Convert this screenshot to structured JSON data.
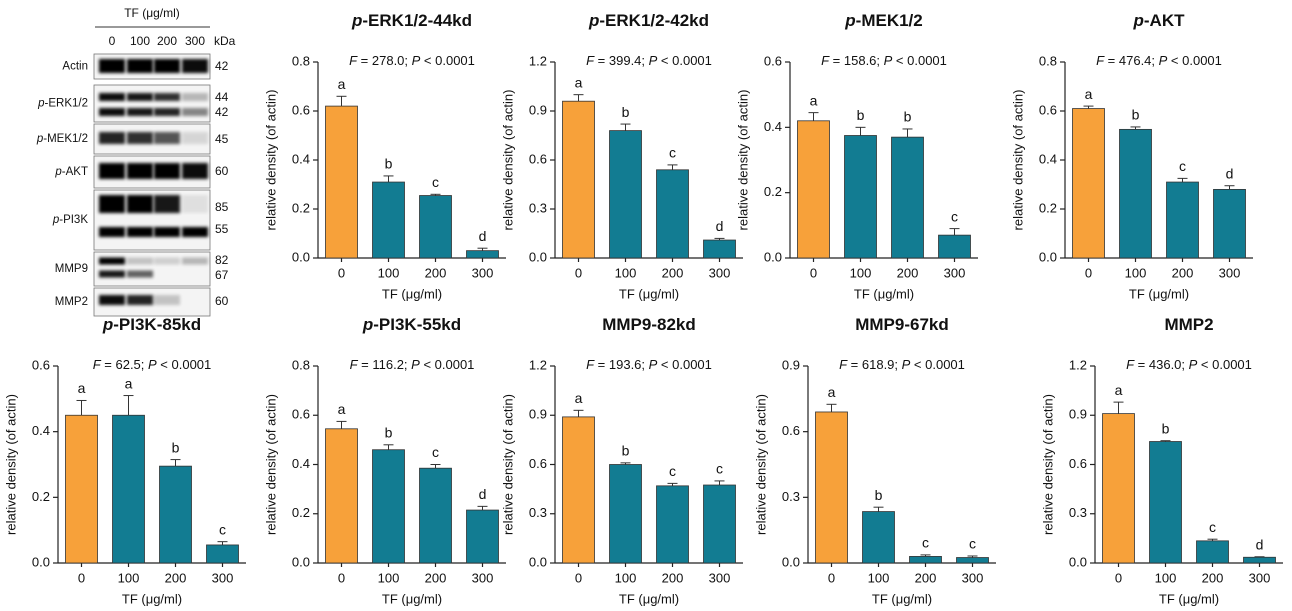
{
  "blot": {
    "header": "TF (μg/ml)",
    "doses": [
      "0",
      "100",
      "200",
      "300"
    ],
    "unit": "kDa",
    "rows": [
      {
        "label": "Actin",
        "kda": [
          "42"
        ]
      },
      {
        "prefix": "p",
        "label": "-ERK1/2",
        "kda": [
          "44",
          "42"
        ]
      },
      {
        "prefix": "p",
        "label": "-MEK1/2",
        "kda": [
          "45"
        ]
      },
      {
        "prefix": "p",
        "label": "-AKT",
        "kda": [
          "60"
        ]
      },
      {
        "prefix": "p",
        "label": "-PI3K",
        "kda": [
          "85",
          "55"
        ]
      },
      {
        "label": "MMP9",
        "kda": [
          "82",
          "67"
        ]
      },
      {
        "label": "MMP2",
        "kda": [
          "60"
        ]
      }
    ]
  },
  "chart_data": [
    {
      "type": "bar",
      "title_prefix": "p",
      "title": "-ERK1/2-44kd",
      "annotation": [
        "F",
        " = 278.0; ",
        "P",
        " < 0.0001"
      ],
      "categories": [
        "0",
        "100",
        "200",
        "300"
      ],
      "values": [
        0.62,
        0.31,
        0.255,
        0.03
      ],
      "errors": [
        0.04,
        0.025,
        0.005,
        0.01
      ],
      "letters": [
        "a",
        "b",
        "c",
        "d"
      ],
      "colors": [
        "#f7a13a",
        "#127c92",
        "#127c92",
        "#127c92"
      ],
      "ylim": [
        0,
        0.8
      ],
      "yticks": [
        {
          "value": 0,
          "label": "0.0"
        },
        0.2,
        0.4,
        0.6,
        0.8
      ],
      "xlabel": "TF (μg/ml)",
      "ylabel": "relative density (of actin)"
    },
    {
      "type": "bar",
      "title_prefix": "p",
      "title": "-ERK1/2-42kd",
      "annotation": [
        "F",
        " = 399.4; ",
        "P",
        " < 0.0001"
      ],
      "categories": [
        "0",
        "100",
        "200",
        "300"
      ],
      "values": [
        0.96,
        0.78,
        0.54,
        0.11
      ],
      "errors": [
        0.04,
        0.04,
        0.03,
        0.01
      ],
      "letters": [
        "a",
        "b",
        "c",
        "d"
      ],
      "colors": [
        "#f7a13a",
        "#127c92",
        "#127c92",
        "#127c92"
      ],
      "ylim": [
        0,
        1.2
      ],
      "yticks": [
        {
          "value": 0,
          "label": "0.0"
        },
        0.3,
        0.6,
        0.9,
        1.2
      ],
      "xlabel": "TF (μg/ml)",
      "ylabel": "relative density (of actin)"
    },
    {
      "type": "bar",
      "title_prefix": "p",
      "title": "-MEK1/2",
      "annotation": [
        "F",
        " = 158.6; ",
        "P",
        " < 0.0001"
      ],
      "categories": [
        "0",
        "100",
        "200",
        "300"
      ],
      "values": [
        0.42,
        0.375,
        0.37,
        0.07
      ],
      "errors": [
        0.025,
        0.025,
        0.025,
        0.02
      ],
      "letters": [
        "a",
        "b",
        "b",
        "c"
      ],
      "colors": [
        "#f7a13a",
        "#127c92",
        "#127c92",
        "#127c92"
      ],
      "ylim": [
        0,
        0.6
      ],
      "yticks": [
        {
          "value": 0,
          "label": "0.0"
        },
        0.2,
        0.4,
        0.6
      ],
      "xlabel": "TF (μg/ml)",
      "ylabel": "relative density (of actin)"
    },
    {
      "type": "bar",
      "title_prefix": "p",
      "title": "-AKT",
      "annotation": [
        "F",
        " = 476.4; ",
        "P",
        " < 0.0001"
      ],
      "categories": [
        "0",
        "100",
        "200",
        "300"
      ],
      "values": [
        0.61,
        0.525,
        0.31,
        0.28
      ],
      "errors": [
        0.01,
        0.01,
        0.015,
        0.015
      ],
      "letters": [
        "a",
        "b",
        "c",
        "d"
      ],
      "colors": [
        "#f7a13a",
        "#127c92",
        "#127c92",
        "#127c92"
      ],
      "ylim": [
        0,
        0.8
      ],
      "yticks": [
        {
          "value": 0,
          "label": "0.0"
        },
        0.2,
        0.4,
        0.6,
        0.8
      ],
      "xlabel": "TF (μg/ml)",
      "ylabel": "relative density (of actin)"
    },
    {
      "type": "bar",
      "title_prefix": "p",
      "title": "-PI3K-85kd",
      "annotation": [
        "F",
        " = 62.5; ",
        "P",
        " < 0.0001"
      ],
      "categories": [
        "0",
        "100",
        "200",
        "300"
      ],
      "values": [
        0.45,
        0.45,
        0.295,
        0.055
      ],
      "errors": [
        0.045,
        0.06,
        0.02,
        0.01
      ],
      "letters": [
        "a",
        "a",
        "b",
        "c"
      ],
      "colors": [
        "#f7a13a",
        "#127c92",
        "#127c92",
        "#127c92"
      ],
      "ylim": [
        0,
        0.6
      ],
      "yticks": [
        {
          "value": 0,
          "label": "0.0"
        },
        0.2,
        0.4,
        0.6
      ],
      "xlabel": "TF (μg/ml)",
      "ylabel": "relative density (of actin)"
    },
    {
      "type": "bar",
      "title_prefix": "p",
      "title": "-PI3K-55kd",
      "annotation": [
        "F",
        " = 116.2; ",
        "P",
        " < 0.0001"
      ],
      "categories": [
        "0",
        "100",
        "200",
        "300"
      ],
      "values": [
        0.545,
        0.46,
        0.385,
        0.215
      ],
      "errors": [
        0.03,
        0.02,
        0.015,
        0.015
      ],
      "letters": [
        "a",
        "b",
        "c",
        "d"
      ],
      "colors": [
        "#f7a13a",
        "#127c92",
        "#127c92",
        "#127c92"
      ],
      "ylim": [
        0,
        0.8
      ],
      "yticks": [
        {
          "value": 0,
          "label": "0.0"
        },
        0.2,
        0.4,
        0.6,
        0.8
      ],
      "xlabel": "TF (μg/ml)",
      "ylabel": "relative density (of actin)"
    },
    {
      "type": "bar",
      "title": "MMP9-82kd",
      "annotation": [
        "F",
        " = 193.6; ",
        "P",
        " < 0.0001"
      ],
      "categories": [
        "0",
        "100",
        "200",
        "300"
      ],
      "values": [
        0.89,
        0.6,
        0.47,
        0.475
      ],
      "errors": [
        0.04,
        0.01,
        0.015,
        0.025
      ],
      "letters": [
        "a",
        "b",
        "c",
        "c"
      ],
      "colors": [
        "#f7a13a",
        "#127c92",
        "#127c92",
        "#127c92"
      ],
      "ylim": [
        0,
        1.2
      ],
      "yticks": [
        {
          "value": 0,
          "label": "0.0"
        },
        0.3,
        0.6,
        0.9,
        1.2
      ],
      "xlabel": "TF (μg/ml)",
      "ylabel": "relative density (of actin)"
    },
    {
      "type": "bar",
      "title": "MMP9-67kd",
      "annotation": [
        "F",
        " = 618.9; ",
        "P",
        " < 0.0001"
      ],
      "categories": [
        "0",
        "100",
        "200",
        "300"
      ],
      "values": [
        0.69,
        0.235,
        0.03,
        0.025
      ],
      "errors": [
        0.035,
        0.02,
        0.007,
        0.007
      ],
      "letters": [
        "a",
        "b",
        "c",
        "c"
      ],
      "colors": [
        "#f7a13a",
        "#127c92",
        "#127c92",
        "#127c92"
      ],
      "ylim": [
        0,
        0.9
      ],
      "yticks": [
        {
          "value": 0,
          "label": "0.0"
        },
        0.3,
        0.6,
        0.9
      ],
      "xlabel": "TF (μg/ml)",
      "ylabel": "relative density (of actin)"
    },
    {
      "type": "bar",
      "title": "MMP2",
      "annotation": [
        "F",
        " = 436.0; ",
        "P",
        " < 0.0001"
      ],
      "categories": [
        "0",
        "100",
        "200",
        "300"
      ],
      "values": [
        0.91,
        0.74,
        0.135,
        0.035
      ],
      "errors": [
        0.07,
        0.005,
        0.01,
        0.003
      ],
      "letters": [
        "a",
        "b",
        "c",
        "d"
      ],
      "colors": [
        "#f7a13a",
        "#127c92",
        "#127c92",
        "#127c92"
      ],
      "ylim": [
        0,
        1.2
      ],
      "yticks": [
        {
          "value": 0,
          "label": "0.0"
        },
        0.3,
        0.6,
        0.9,
        1.2
      ],
      "xlabel": "TF (μg/ml)",
      "ylabel": "relative density (of actin)"
    }
  ]
}
